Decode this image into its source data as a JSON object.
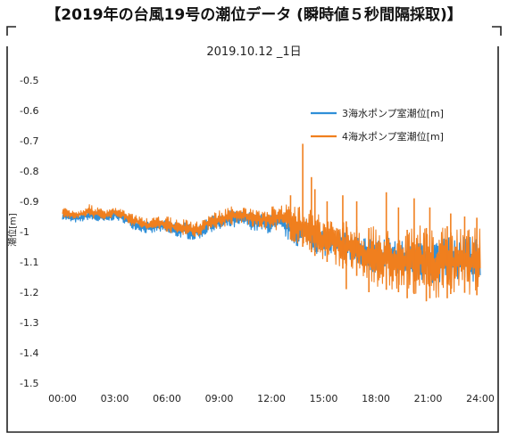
{
  "page": {
    "title": "【2019年の台風19号の潮位データ (瞬時値５秒間隔採取)】"
  },
  "colors": {
    "series_3": "#2f8fd8",
    "series_4": "#f07f1e",
    "frame": "#222222"
  },
  "chart_data": {
    "type": "line",
    "title": "2019.10.12 _1日",
    "xlabel": "",
    "ylabel": "潮位[m]",
    "x_ticks": [
      "00:00",
      "03:00",
      "06:00",
      "09:00",
      "12:00",
      "15:00",
      "18:00",
      "21:00",
      "24:00"
    ],
    "y_ticks": [
      "-0.5",
      "-0.6",
      "-0.7",
      "-0.8",
      "-0.9",
      "-1",
      "-1.1",
      "-1.2",
      "-1.3",
      "-1.4",
      "-1.5"
    ],
    "xlim_hours": [
      0,
      24
    ],
    "ylim": [
      -1.5,
      -0.5
    ],
    "legend_position": "top-right",
    "grid": false,
    "series": [
      {
        "name": "3海水ポンプ室潮位[m]",
        "color": "#2f8fd8",
        "hours": [
          0,
          0.5,
          1,
          1.5,
          2,
          2.5,
          3,
          3.5,
          4,
          4.5,
          5,
          5.5,
          6,
          6.5,
          7,
          7.5,
          8,
          8.5,
          9,
          9.5,
          10,
          10.5,
          11,
          11.5,
          12,
          12.5,
          13,
          13.5,
          14,
          14.5,
          15,
          15.5,
          16,
          16.5,
          17,
          17.5,
          18,
          18.5,
          19,
          19.5,
          20,
          20.5,
          21,
          21.5,
          22,
          22.5,
          23,
          23.5,
          24
        ],
        "low": [
          -0.96,
          -0.97,
          -0.97,
          -0.96,
          -0.97,
          -0.97,
          -0.96,
          -0.97,
          -0.99,
          -1.0,
          -1.01,
          -1.0,
          -1.01,
          -1.02,
          -1.02,
          -1.03,
          -1.02,
          -1.0,
          -1.0,
          -0.99,
          -0.99,
          -0.98,
          -1.0,
          -1.0,
          -1.01,
          -1.0,
          -1.03,
          -1.05,
          -1.04,
          -1.07,
          -1.08,
          -1.08,
          -1.09,
          -1.1,
          -1.12,
          -1.13,
          -1.14,
          -1.15,
          -1.15,
          -1.16,
          -1.17,
          -1.16,
          -1.17,
          -1.17,
          -1.16,
          -1.17,
          -1.16,
          -1.17,
          -1.16
        ],
        "high": [
          -0.93,
          -0.94,
          -0.94,
          -0.93,
          -0.93,
          -0.94,
          -0.93,
          -0.94,
          -0.95,
          -0.96,
          -0.97,
          -0.96,
          -0.96,
          -0.97,
          -0.97,
          -0.98,
          -0.97,
          -0.95,
          -0.94,
          -0.93,
          -0.93,
          -0.93,
          -0.94,
          -0.94,
          -0.94,
          -0.93,
          -0.95,
          -0.97,
          -0.95,
          -0.99,
          -1.0,
          -0.99,
          -0.99,
          -1.0,
          -1.01,
          -1.02,
          -1.02,
          -1.02,
          -1.02,
          -1.03,
          -1.03,
          -1.02,
          -1.03,
          -1.03,
          -1.02,
          -1.02,
          -1.01,
          -1.02,
          -1.03
        ]
      },
      {
        "name": "4海水ポンプ室潮位[m]",
        "color": "#f07f1e",
        "hours": [
          0,
          0.5,
          1,
          1.5,
          2,
          2.5,
          3,
          3.5,
          4,
          4.5,
          5,
          5.5,
          6,
          6.5,
          7,
          7.5,
          8,
          8.5,
          9,
          9.5,
          10,
          10.5,
          11,
          11.5,
          12,
          12.5,
          13,
          13.5,
          14,
          14.5,
          15,
          15.5,
          16,
          16.5,
          17,
          17.5,
          18,
          18.5,
          19,
          19.5,
          20,
          20.5,
          21,
          21.5,
          22,
          22.5,
          23,
          23.5,
          24
        ],
        "low": [
          -0.95,
          -0.96,
          -0.96,
          -0.95,
          -0.96,
          -0.96,
          -0.95,
          -0.96,
          -0.98,
          -0.99,
          -1.0,
          -0.99,
          -1.0,
          -1.01,
          -1.01,
          -1.02,
          -1.01,
          -0.99,
          -0.99,
          -0.98,
          -0.98,
          -0.97,
          -0.99,
          -0.99,
          -1.0,
          -0.99,
          -1.02,
          -1.05,
          -1.05,
          -1.08,
          -1.1,
          -1.1,
          -1.12,
          -1.13,
          -1.15,
          -1.17,
          -1.18,
          -1.19,
          -1.2,
          -1.2,
          -1.21,
          -1.2,
          -1.22,
          -1.22,
          -1.2,
          -1.21,
          -1.2,
          -1.21,
          -1.2
        ],
        "high": [
          -0.92,
          -0.93,
          -0.93,
          -0.91,
          -0.92,
          -0.93,
          -0.92,
          -0.93,
          -0.94,
          -0.95,
          -0.96,
          -0.95,
          -0.95,
          -0.96,
          -0.96,
          -0.97,
          -0.96,
          -0.94,
          -0.93,
          -0.92,
          -0.91,
          -0.92,
          -0.93,
          -0.93,
          -0.92,
          -0.9,
          -0.91,
          -0.92,
          -0.9,
          -0.93,
          -0.96,
          -0.96,
          -0.96,
          -0.97,
          -0.98,
          -0.99,
          -0.98,
          -0.99,
          -0.99,
          -1.0,
          -0.99,
          -0.98,
          -0.99,
          -1.0,
          -0.98,
          -0.99,
          -0.98,
          -0.99,
          -0.93
        ]
      }
    ],
    "spikes": [
      {
        "hour": 13.8,
        "value": -0.71
      },
      {
        "hour": 14.3,
        "value": -0.82
      },
      {
        "hour": 14.5,
        "value": -0.86
      },
      {
        "hour": 13.1,
        "value": -0.88
      },
      {
        "hour": 15.2,
        "value": -0.9
      },
      {
        "hour": 16.1,
        "value": -0.88
      },
      {
        "hour": 16.9,
        "value": -0.9
      },
      {
        "hour": 18.6,
        "value": -0.87
      },
      {
        "hour": 19.3,
        "value": -0.92
      },
      {
        "hour": 20.2,
        "value": -0.89
      },
      {
        "hour": 21.1,
        "value": -0.92
      },
      {
        "hour": 22.3,
        "value": -0.94
      },
      {
        "hour": 23.1,
        "value": -0.95
      }
    ],
    "dips": [
      {
        "hour": 16.3,
        "value": -1.19
      },
      {
        "hour": 17.6,
        "value": -1.2
      },
      {
        "hour": 19.8,
        "value": -1.22
      },
      {
        "hour": 20.9,
        "value": -1.23
      },
      {
        "hour": 22.1,
        "value": -1.22
      },
      {
        "hour": 23.8,
        "value": -1.21
      }
    ]
  }
}
